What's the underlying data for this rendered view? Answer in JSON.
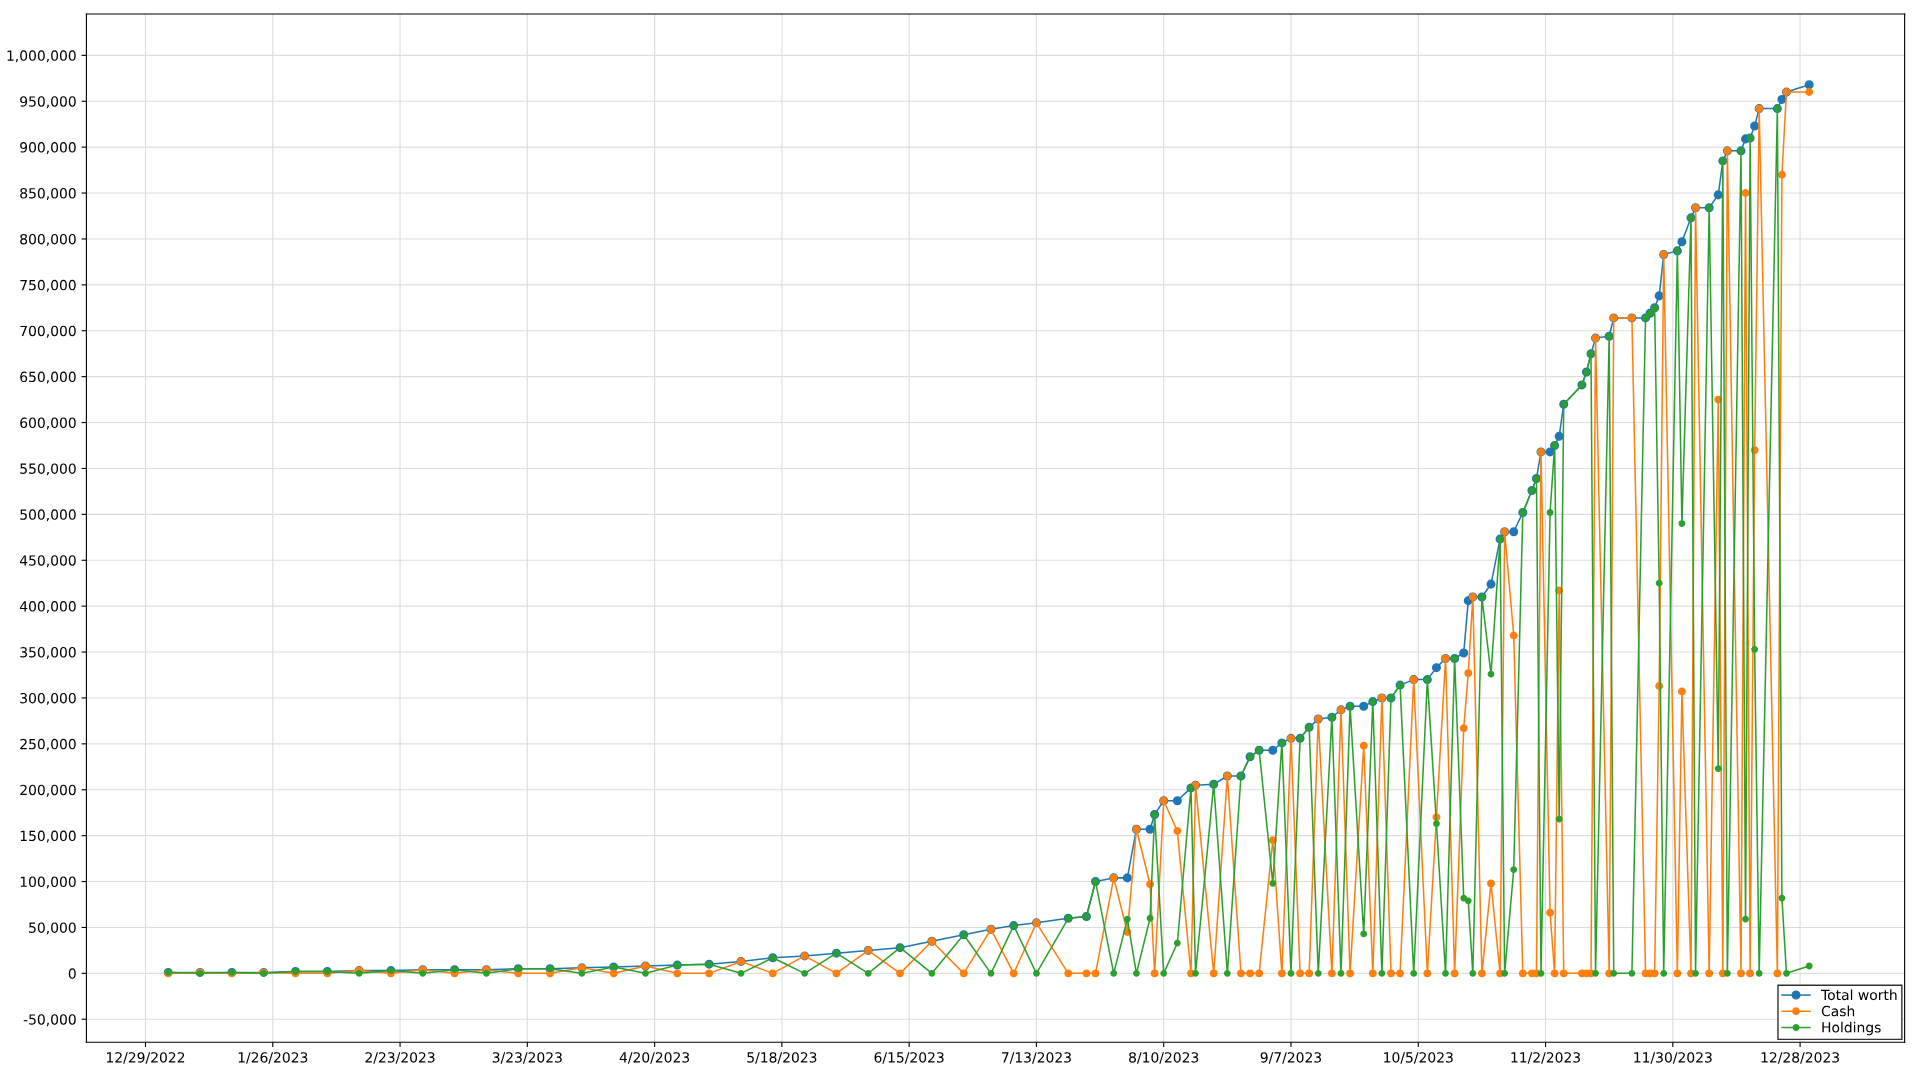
{
  "chart_data": {
    "type": "line",
    "marker": "circle",
    "line_style": "solid",
    "grid": true,
    "legend": "bottom right",
    "x": [
      "2023-01-03",
      "2023-01-10",
      "2023-01-17",
      "2023-01-24",
      "2023-01-31",
      "2023-02-07",
      "2023-02-14",
      "2023-02-21",
      "2023-02-28",
      "2023-03-07",
      "2023-03-14",
      "2023-03-21",
      "2023-03-28",
      "2023-04-04",
      "2023-04-11",
      "2023-04-18",
      "2023-04-25",
      "2023-05-02",
      "2023-05-09",
      "2023-05-16",
      "2023-05-23",
      "2023-05-30",
      "2023-06-06",
      "2023-06-13",
      "2023-06-20",
      "2023-06-27",
      "2023-07-03",
      "2023-07-08",
      "2023-07-13",
      "2023-07-20",
      "2023-07-24",
      "2023-07-26",
      "2023-07-30",
      "2023-08-02",
      "2023-08-04",
      "2023-08-07",
      "2023-08-08",
      "2023-08-10",
      "2023-08-13",
      "2023-08-16",
      "2023-08-17",
      "2023-08-21",
      "2023-08-24",
      "2023-08-27",
      "2023-08-29",
      "2023-08-31",
      "2023-09-03",
      "2023-09-05",
      "2023-09-07",
      "2023-09-09",
      "2023-09-11",
      "2023-09-13",
      "2023-09-16",
      "2023-09-18",
      "2023-09-20",
      "2023-09-23",
      "2023-09-25",
      "2023-09-27",
      "2023-09-29",
      "2023-10-01",
      "2023-10-04",
      "2023-10-07",
      "2023-10-09",
      "2023-10-11",
      "2023-10-13",
      "2023-10-15",
      "2023-10-16",
      "2023-10-17",
      "2023-10-19",
      "2023-10-21",
      "2023-10-23",
      "2023-10-24",
      "2023-10-26",
      "2023-10-28",
      "2023-10-30",
      "2023-10-31",
      "2023-11-01",
      "2023-11-03",
      "2023-11-04",
      "2023-11-05",
      "2023-11-06",
      "2023-11-10",
      "2023-11-11",
      "2023-11-12",
      "2023-11-13",
      "2023-11-16",
      "2023-11-17",
      "2023-11-21",
      "2023-11-24",
      "2023-11-25",
      "2023-11-26",
      "2023-11-27",
      "2023-11-28",
      "2023-12-01",
      "2023-12-02",
      "2023-12-04",
      "2023-12-05",
      "2023-12-08",
      "2023-12-10",
      "2023-12-11",
      "2023-12-12",
      "2023-12-15",
      "2023-12-16",
      "2023-12-17",
      "2023-12-18",
      "2023-12-19",
      "2023-12-23",
      "2023-12-24",
      "2023-12-25",
      "2023-12-30"
    ],
    "series": [
      {
        "name": "Total worth",
        "color": "#1f77b4",
        "values": [
          1000,
          1000,
          1000,
          1000,
          2000,
          2000,
          3000,
          3000,
          4000,
          4000,
          4000,
          5000,
          5000,
          6000,
          7000,
          8000,
          9000,
          10000,
          13000,
          17000,
          19000,
          22000,
          25000,
          28000,
          35000,
          42000,
          48000,
          52000,
          55000,
          60000,
          62000,
          100000,
          104000,
          104000,
          157000,
          157000,
          173000,
          188000,
          188000,
          202000,
          205000,
          206000,
          215000,
          215000,
          236000,
          243000,
          243000,
          251000,
          256000,
          256000,
          268000,
          277000,
          279000,
          287000,
          291000,
          291000,
          296000,
          300000,
          300000,
          314000,
          320000,
          320000,
          333000,
          343000,
          343000,
          349000,
          406000,
          410000,
          410000,
          424000,
          473000,
          481000,
          481000,
          502000,
          526000,
          539000,
          568000,
          568000,
          575000,
          585000,
          620000,
          641000,
          655000,
          675000,
          692000,
          694000,
          714000,
          714000,
          714000,
          719000,
          725000,
          738000,
          783000,
          787000,
          797000,
          823000,
          834000,
          834000,
          848000,
          885000,
          896000,
          896000,
          909000,
          910000,
          923000,
          942000,
          942000,
          952000,
          960000,
          968000
        ]
      },
      {
        "name": "Cash",
        "color": "#ff7f0e",
        "values": [
          0,
          1000,
          0,
          1000,
          0,
          0,
          3000,
          0,
          4000,
          0,
          4000,
          0,
          0,
          6000,
          0,
          8000,
          0,
          0,
          13000,
          0,
          19000,
          0,
          25000,
          0,
          35000,
          0,
          48000,
          0,
          55000,
          0,
          0,
          0,
          104000,
          45000,
          157000,
          97000,
          0,
          188000,
          155000,
          0,
          205000,
          0,
          215000,
          0,
          0,
          0,
          145000,
          0,
          256000,
          0,
          0,
          277000,
          0,
          287000,
          0,
          248000,
          0,
          300000,
          0,
          0,
          320000,
          0,
          170000,
          343000,
          0,
          267000,
          327000,
          410000,
          0,
          98000,
          0,
          481000,
          368000,
          0,
          0,
          0,
          568000,
          66000,
          0,
          417000,
          0,
          0,
          0,
          0,
          692000,
          0,
          714000,
          714000,
          0,
          0,
          0,
          313000,
          783000,
          0,
          307000,
          0,
          834000,
          0,
          625000,
          0,
          896000,
          0,
          850000,
          0,
          570000,
          942000,
          0,
          870000,
          960000,
          960000
        ]
      },
      {
        "name": "Holdings",
        "color": "#2ca02c",
        "values": [
          1000,
          0,
          1000,
          0,
          2000,
          2000,
          0,
          3000,
          0,
          4000,
          0,
          5000,
          5000,
          0,
          7000,
          0,
          9000,
          10000,
          0,
          17000,
          0,
          22000,
          0,
          28000,
          0,
          42000,
          0,
          52000,
          0,
          60000,
          62000,
          100000,
          0,
          59000,
          0,
          60000,
          173000,
          0,
          33000,
          202000,
          0,
          206000,
          0,
          215000,
          236000,
          243000,
          98000,
          251000,
          0,
          256000,
          268000,
          0,
          279000,
          0,
          291000,
          43000,
          296000,
          0,
          300000,
          314000,
          0,
          320000,
          163000,
          0,
          343000,
          82000,
          79000,
          0,
          410000,
          326000,
          473000,
          0,
          113000,
          502000,
          526000,
          539000,
          0,
          502000,
          575000,
          168000,
          620000,
          641000,
          655000,
          675000,
          0,
          694000,
          0,
          0,
          714000,
          719000,
          725000,
          425000,
          0,
          787000,
          490000,
          823000,
          0,
          834000,
          223000,
          885000,
          0,
          896000,
          59000,
          910000,
          353000,
          0,
          942000,
          82000,
          0,
          8000
        ]
      }
    ],
    "xlim": [
      "2022-12-16",
      "2024-01-20"
    ],
    "xticks": [
      {
        "value": "2022-12-29",
        "label": "12/29/2022"
      },
      {
        "value": "2023-01-26",
        "label": "1/26/2023"
      },
      {
        "value": "2023-02-23",
        "label": "2/23/2023"
      },
      {
        "value": "2023-03-23",
        "label": "3/23/2023"
      },
      {
        "value": "2023-04-20",
        "label": "4/20/2023"
      },
      {
        "value": "2023-05-18",
        "label": "5/18/2023"
      },
      {
        "value": "2023-06-15",
        "label": "6/15/2023"
      },
      {
        "value": "2023-07-13",
        "label": "7/13/2023"
      },
      {
        "value": "2023-08-10",
        "label": "8/10/2023"
      },
      {
        "value": "2023-09-07",
        "label": "9/7/2023"
      },
      {
        "value": "2023-10-05",
        "label": "10/5/2023"
      },
      {
        "value": "2023-11-02",
        "label": "11/2/2023"
      },
      {
        "value": "2023-11-30",
        "label": "11/30/2023"
      },
      {
        "value": "2023-12-28",
        "label": "12/28/2023"
      }
    ],
    "ylim": [
      -75000,
      1045000
    ],
    "yticks": [
      {
        "value": -50000,
        "label": "-50,000"
      },
      0,
      {
        "value": 50000,
        "label": "50,000"
      },
      {
        "value": 100000,
        "label": "100,000"
      },
      {
        "value": 150000,
        "label": "150,000"
      },
      {
        "value": 200000,
        "label": "200,000"
      },
      {
        "value": 250000,
        "label": "250,000"
      },
      {
        "value": 300000,
        "label": "300,000"
      },
      {
        "value": 350000,
        "label": "350,000"
      },
      {
        "value": 400000,
        "label": "400,000"
      },
      {
        "value": 450000,
        "label": "450,000"
      },
      {
        "value": 500000,
        "label": "500,000"
      },
      {
        "value": 550000,
        "label": "550,000"
      },
      {
        "value": 600000,
        "label": "600,000"
      },
      {
        "value": 650000,
        "label": "650,000"
      },
      {
        "value": 700000,
        "label": "700,000"
      },
      {
        "value": 750000,
        "label": "750,000"
      },
      {
        "value": 800000,
        "label": "800,000"
      },
      {
        "value": 850000,
        "label": "850,000"
      },
      {
        "value": 900000,
        "label": "900,000"
      },
      {
        "value": 950000,
        "label": "950,000"
      },
      {
        "value": 1000000,
        "label": "1,000,000"
      }
    ]
  }
}
